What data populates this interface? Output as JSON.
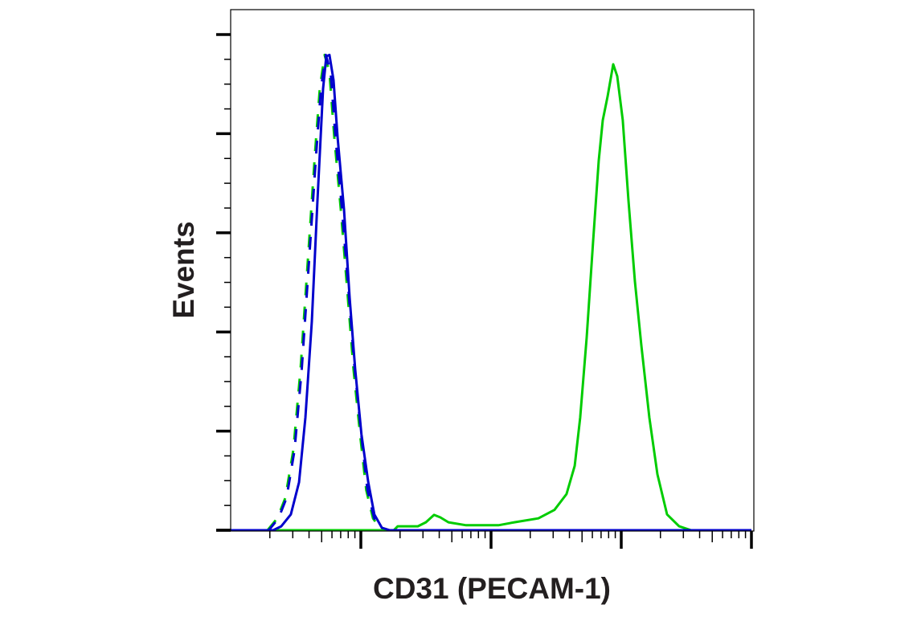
{
  "chart_data": {
    "type": "line",
    "title": "",
    "xlabel": "CD31 (PECAM-1)",
    "ylabel": "Events",
    "xscale": "log",
    "xlim": [
      1,
      10000
    ],
    "ylim": [
      0,
      105
    ],
    "y_major_ticks": [
      0,
      20,
      40,
      60,
      80,
      100
    ],
    "tick_labels_shown": false,
    "grid": false,
    "legend": "none",
    "series": [
      {
        "color": "#00cc00",
        "style": "dashed",
        "x": [
          1.92,
          2.28,
          2.63,
          3.03,
          3.44,
          3.86,
          4.45,
          4.84,
          5.27,
          5.74,
          6.25,
          7.01,
          7.85,
          8.79,
          9.86,
          11.0,
          12.4,
          14.5
        ],
        "y": [
          0,
          2.4,
          6.5,
          16.2,
          32.4,
          51.9,
          76.2,
          89.1,
          95.9,
          92.4,
          79.4,
          64.8,
          48.6,
          32.4,
          19.4,
          8.1,
          2.4,
          0
        ]
      },
      {
        "color": "#0000cc",
        "style": "dashed",
        "x": [
          1.92,
          2.28,
          2.63,
          3.03,
          3.44,
          3.86,
          4.45,
          4.84,
          5.27,
          5.74,
          6.25,
          7.01,
          7.85,
          8.79,
          9.86,
          11.0,
          12.4,
          14.5
        ],
        "y": [
          0,
          2.4,
          6.5,
          16.2,
          32.4,
          51.9,
          76.2,
          89.1,
          95.9,
          92.4,
          79.4,
          64.8,
          48.6,
          32.4,
          19.4,
          8.1,
          2.4,
          0
        ]
      },
      {
        "color": "#00cc00",
        "style": "solid",
        "x": [
          1,
          17.9,
          19.2,
          27.4,
          31.6,
          36.5,
          40.8,
          47.1,
          64.4,
          114,
          151,
          231,
          307,
          380,
          439,
          484,
          543,
          608,
          672,
          721,
          785,
          867,
          931,
          1028,
          1137,
          1274,
          1426,
          1644,
          1897,
          2249,
          2781,
          3443,
          10000
        ],
        "y": [
          0,
          0,
          0.8,
          0.8,
          1.6,
          3.1,
          2.6,
          1.6,
          1.0,
          1.0,
          1.6,
          2.4,
          4.1,
          7.3,
          13,
          22.7,
          38.9,
          58.3,
          74.6,
          82.7,
          87.5,
          94,
          91.6,
          82.7,
          66.5,
          50.2,
          37.3,
          22.7,
          11.3,
          3.2,
          0.8,
          0,
          0
        ]
      },
      {
        "color": "#0000cc",
        "style": "solid",
        "x": [
          1,
          2.12,
          2.45,
          2.9,
          3.35,
          3.75,
          4.2,
          4.64,
          5.13,
          5.43,
          5.74,
          6.17,
          6.62,
          7.42,
          8.2,
          9.05,
          10.1,
          11.4,
          12.7,
          14.5,
          16.7,
          10000
        ],
        "y": [
          0,
          0,
          0.8,
          3.2,
          9.7,
          22.7,
          42.1,
          66.5,
          89.1,
          95.6,
          95.9,
          90.8,
          79.4,
          64.8,
          47,
          32.4,
          19.4,
          9.7,
          3.2,
          0.5,
          0,
          0
        ]
      }
    ]
  },
  "colors": {
    "axis": "#000000",
    "label": "#231f20"
  }
}
